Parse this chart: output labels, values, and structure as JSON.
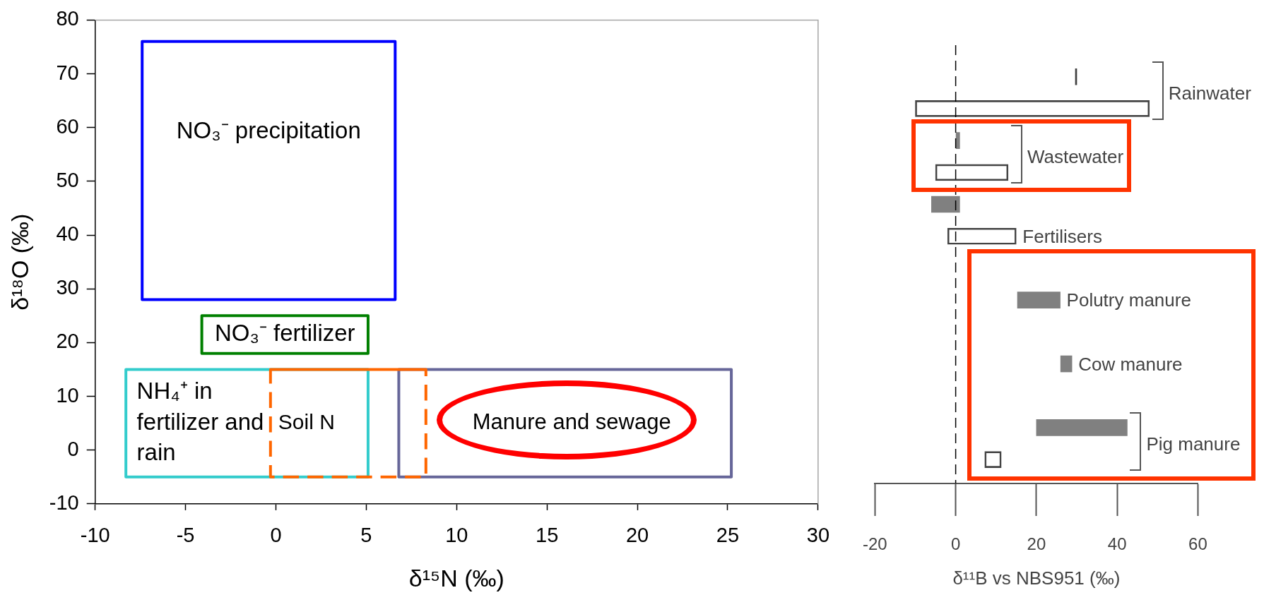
{
  "chart_data": [
    {
      "type": "line",
      "xlabel": "δ¹⁵N (‰)",
      "ylabel": "δ¹⁸O (‰)",
      "xlim": [
        -10,
        30
      ],
      "xticks": [
        -10,
        -5,
        0,
        5,
        10,
        15,
        20,
        25,
        30
      ],
      "ylim": [
        -10,
        80
      ],
      "yticks": [
        -10,
        0,
        10,
        20,
        30,
        40,
        50,
        60,
        70,
        80
      ],
      "grid": false,
      "marker": "none",
      "series": [
        {
          "name": "NO₃⁻ precipitation",
          "color": "#0000ff",
          "x": [
            -7.4,
            6.6,
            6.6,
            -7.4,
            -7.4,
            6.6
          ],
          "values": [
            76,
            76,
            28,
            28,
            76,
            76
          ]
        },
        {
          "name": "NO₃⁻ fertilizer",
          "color": "#008000",
          "x": [
            -4.1,
            5.1,
            5.1,
            -4.1,
            -4.1,
            5.1
          ],
          "values": [
            25,
            25,
            18,
            18,
            25,
            25
          ]
        },
        {
          "name": "NH₄⁺ in fertilizer and rain",
          "color": "#33cccc",
          "x": [
            -8.3,
            5.1,
            5.1,
            -8.3,
            -8.3,
            5.1
          ],
          "values": [
            15,
            15,
            -5,
            -5,
            15,
            15
          ]
        },
        {
          "name": "Manure and sewage",
          "color": "#666699",
          "x": [
            6.8,
            25.2,
            25.2,
            6.8,
            6.8,
            25.2
          ],
          "values": [
            15,
            15,
            -5,
            -5,
            15,
            15
          ]
        },
        {
          "name": "Soil N",
          "color": "#ff6600",
          "line_style": "dashed",
          "x": [
            -0.3,
            8.3,
            8.3,
            -0.3,
            -0.3,
            8.3
          ],
          "values": [
            15,
            15,
            -5,
            -5,
            15,
            15
          ]
        }
      ]
    },
    {
      "type": "bar",
      "orientation": "horizontal",
      "xlabel": "δ¹¹B vs NBS951 (‰)",
      "xlim": [
        -20,
        60
      ],
      "xticks": [
        -20,
        0,
        20,
        40,
        60
      ],
      "grid": false,
      "categories": [
        "Rainwater",
        null,
        "Wastewater",
        null,
        null,
        "Fertilisers",
        null,
        "Polutry manure",
        null,
        "Cow manure",
        null,
        "Pig manure",
        null
      ],
      "base": [
        30,
        -10,
        0,
        -5,
        -6,
        -2,
        null,
        15.3,
        null,
        26,
        null,
        20,
        7.2
      ],
      "values": [
        0,
        58,
        1,
        18,
        7,
        17,
        null,
        10.6,
        null,
        2.8,
        null,
        22.5,
        4.1
      ],
      "colors": [
        "#404040",
        null,
        "#808080",
        null,
        "#808080",
        null,
        null,
        "#808080",
        null,
        "#808080",
        null,
        "#808080",
        null
      ],
      "ref_lines": [
        {
          "axis": "x",
          "value": 0,
          "color": "#000000",
          "line_style": "dashed"
        }
      ]
    }
  ]
}
